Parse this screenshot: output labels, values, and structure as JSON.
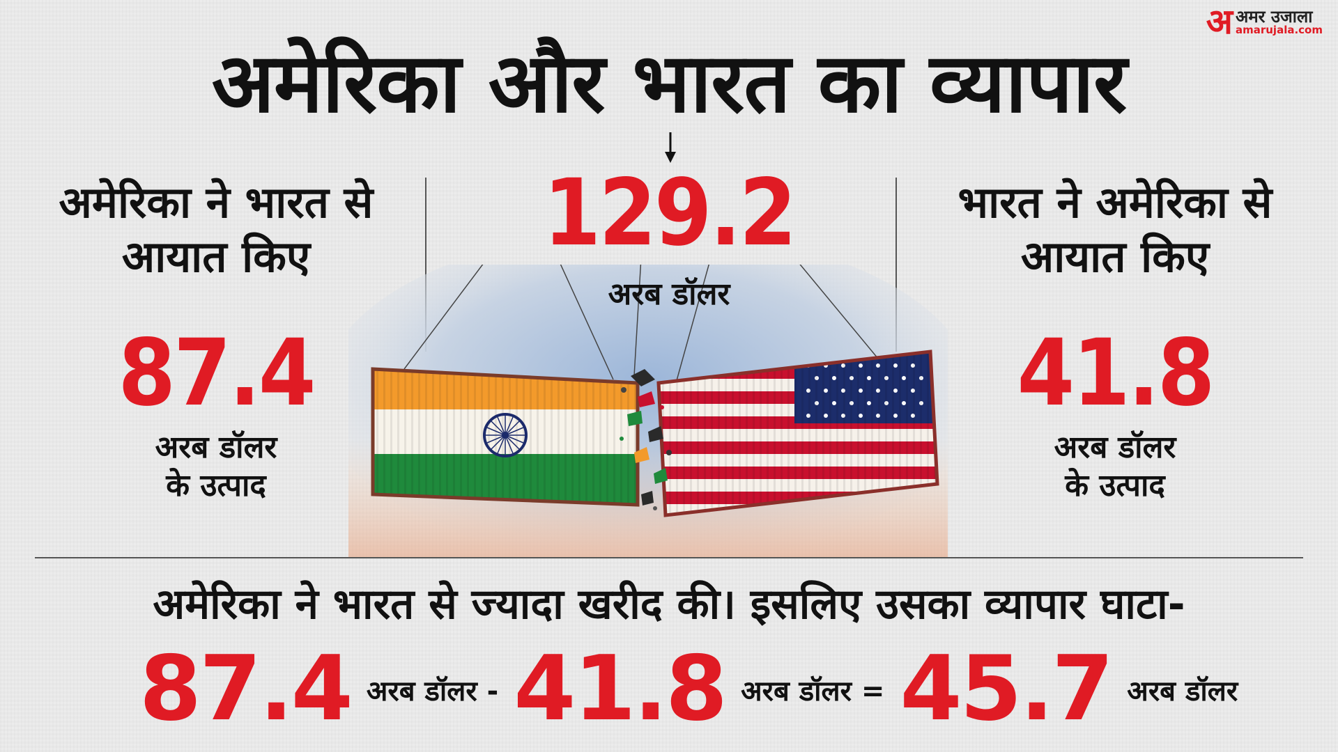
{
  "logo": {
    "glyph": "अ",
    "name": "अमर उजाला",
    "domain": "amarujala.com"
  },
  "title": "अमेरिका और भारत का व्यापार",
  "total": {
    "value": "129.2",
    "unit": "अरब डॉलर"
  },
  "left": {
    "heading_line1": "अमेरिका ने भारत से",
    "heading_line2": "आयात किए",
    "value": "87.4",
    "unit_line1": "अरब डॉलर",
    "unit_line2": "के उत्पाद"
  },
  "right": {
    "heading_line1": "भारत ने अमेरिका से",
    "heading_line2": "आयात किए",
    "value": "41.8",
    "unit_line1": "अरब डॉलर",
    "unit_line2": "के उत्पाद"
  },
  "bottom": {
    "text": "अमेरिका ने भारत से ज्यादा खरीद की। इसलिए उसका व्यापार घाटा-",
    "a_value": "87.4",
    "a_unit": "अरब डॉलर -",
    "b_value": "41.8",
    "b_unit": "अरब डॉलर =",
    "c_value": "45.7",
    "c_unit": "अरब डॉलर"
  },
  "colors": {
    "accent": "#e01b24",
    "saffron": "#f39a2b",
    "india_green": "#1f8a3c",
    "navy": "#1b2a6b",
    "us_red": "#c8102e",
    "us_blue": "#1c2d6b"
  },
  "icons": [
    "ashoka-chakra-icon",
    "us-stars-icon",
    "down-arrow-icon"
  ]
}
